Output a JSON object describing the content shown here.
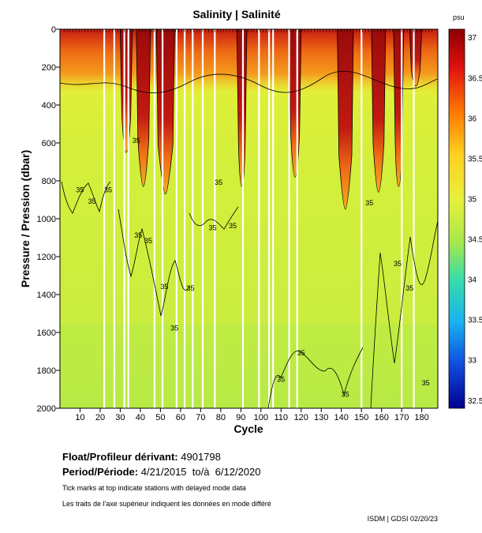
{
  "chart_data": {
    "type": "heatmap",
    "title": "Salinity | Salinité",
    "xlabel": "Cycle",
    "ylabel": "Pressure / Pression (dbar)",
    "xlim": [
      0,
      188
    ],
    "ylim": [
      0,
      2000
    ],
    "x_ticks": [
      10,
      20,
      30,
      40,
      50,
      60,
      70,
      80,
      90,
      100,
      110,
      120,
      130,
      140,
      150,
      160,
      170,
      180
    ],
    "y_ticks": [
      0,
      200,
      400,
      600,
      800,
      1000,
      1200,
      1400,
      1600,
      1800,
      2000
    ],
    "colorbar": {
      "unit": "psu",
      "range": [
        32.4,
        37.1
      ],
      "ticks": [
        37,
        36.5,
        36,
        35.5,
        35,
        34.5,
        34,
        33.5,
        33,
        32.5
      ]
    },
    "contour_interval": 0.5,
    "contour_label": "35",
    "high_salinity_columns": [
      {
        "cycle_start": 30,
        "cycle_end": 36,
        "depth_to": 650
      },
      {
        "cycle_start": 38,
        "cycle_end": 45,
        "depth_to": 830
      },
      {
        "cycle_start": 48,
        "cycle_end": 57,
        "depth_to": 870
      },
      {
        "cycle_start": 88,
        "cycle_end": 93,
        "depth_to": 830
      },
      {
        "cycle_start": 114,
        "cycle_end": 120,
        "depth_to": 780
      },
      {
        "cycle_start": 138,
        "cycle_end": 146,
        "depth_to": 950
      },
      {
        "cycle_start": 155,
        "cycle_end": 162,
        "depth_to": 860
      },
      {
        "cycle_start": 166,
        "cycle_end": 171,
        "depth_to": 830
      },
      {
        "cycle_start": 174,
        "cycle_end": 180,
        "depth_to": 300
      }
    ],
    "missing_profile_cycles": [
      22,
      27,
      32,
      34,
      47,
      51,
      58,
      62,
      66,
      71,
      77,
      91,
      99,
      104,
      106,
      114,
      118,
      150,
      170,
      176
    ],
    "contour_label_positions": [
      {
        "cycle": 8,
        "pressure": 860
      },
      {
        "cycle": 14,
        "pressure": 920
      },
      {
        "cycle": 22,
        "pressure": 860
      },
      {
        "cycle": 36,
        "pressure": 600
      },
      {
        "cycle": 37,
        "pressure": 1100
      },
      {
        "cycle": 42,
        "pressure": 1130
      },
      {
        "cycle": 50,
        "pressure": 1370
      },
      {
        "cycle": 55,
        "pressure": 1590
      },
      {
        "cycle": 63,
        "pressure": 1380
      },
      {
        "cycle": 74,
        "pressure": 1060
      },
      {
        "cycle": 77,
        "pressure": 820
      },
      {
        "cycle": 84,
        "pressure": 1050
      },
      {
        "cycle": 108,
        "pressure": 1860
      },
      {
        "cycle": 118,
        "pressure": 1720
      },
      {
        "cycle": 140,
        "pressure": 1940
      },
      {
        "cycle": 152,
        "pressure": 930
      },
      {
        "cycle": 166,
        "pressure": 1250
      },
      {
        "cycle": 172,
        "pressure": 1380
      },
      {
        "cycle": 180,
        "pressure": 1880
      }
    ]
  },
  "info": {
    "float_label": "Float/Profileur dérivant:",
    "float_id": "4901798",
    "period_label": "Period/Période:",
    "period_value": "4/21/2015  to/à  6/12/2020",
    "note_en": "Tick marks at top indicate stations with delayed mode data",
    "note_fr": "Les traits de l'axe supérieur indiquent les données en mode différé"
  },
  "footer": "ISDM | GDSI  02/20/23",
  "colors": {
    "deep_water": "#b6ea45",
    "mid_water": "#d9f23c",
    "surface_orange": "#f28c1c",
    "high_salinity": "#a60e0e"
  }
}
